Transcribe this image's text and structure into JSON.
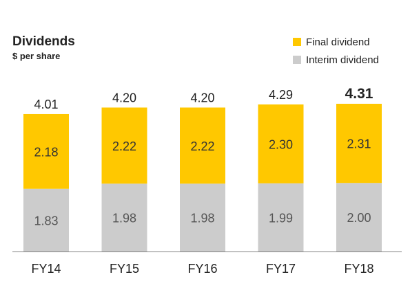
{
  "chart_data": {
    "type": "bar",
    "stacked": true,
    "title": "Dividends",
    "subtitle": "$ per share",
    "categories": [
      "FY14",
      "FY15",
      "FY16",
      "FY17",
      "FY18"
    ],
    "series": [
      {
        "name": "Interim dividend",
        "values": [
          1.83,
          1.98,
          1.98,
          1.99,
          2.0
        ],
        "color": "#cccccc",
        "labels": [
          "1.83",
          "1.98",
          "1.98",
          "1.99",
          "2.00"
        ]
      },
      {
        "name": "Final dividend",
        "values": [
          2.18,
          2.22,
          2.22,
          2.3,
          2.31
        ],
        "color": "#ffc800",
        "labels": [
          "2.18",
          "2.22",
          "2.22",
          "2.30",
          "2.31"
        ]
      }
    ],
    "totals": [
      "4.01",
      "4.20",
      "4.20",
      "4.29",
      "4.31"
    ],
    "highlight_total_index": 4,
    "ylim": [
      0,
      4.31
    ],
    "grid": false,
    "legend_position": "top-right"
  }
}
